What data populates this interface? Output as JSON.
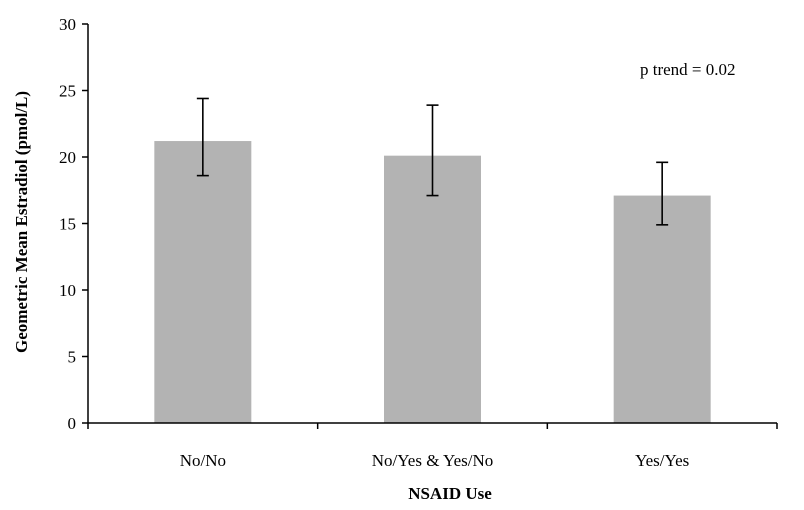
{
  "chart_data": {
    "type": "bar",
    "categories": [
      "No/No",
      "No/Yes & Yes/No",
      "Yes/Yes"
    ],
    "values": [
      21.2,
      20.1,
      17.1
    ],
    "error_low": [
      18.6,
      17.1,
      14.9
    ],
    "error_high": [
      24.4,
      23.9,
      19.6
    ],
    "title": "",
    "xlabel": "NSAID Use",
    "ylabel": "Geometric Mean Estradiol (pmol/L)",
    "ylim": [
      0,
      30
    ],
    "yticks": [
      "0",
      "5",
      "10",
      "15",
      "20",
      "25",
      "30"
    ],
    "annotation": "p trend = 0.02",
    "bar_color": "#b3b3b3",
    "grid": false,
    "legend": "none"
  }
}
